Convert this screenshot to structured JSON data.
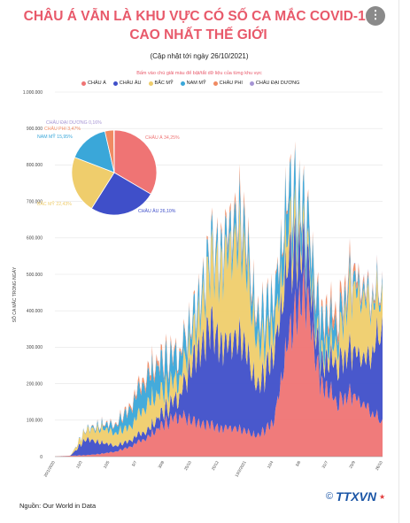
{
  "header": {
    "title_line1": "CHÂU Á VẪN LÀ KHU VỰC CÓ SỐ CA MẮC COVID-19",
    "title_line2": "CAO NHẤT THẾ GIỚI",
    "subtitle": "(Cập nhật tới ngày 26/10/2021)",
    "hint": "Bấm vào chú giải màu để bật/tắt dữ liệu của từng khu vực",
    "more_icon": "more-vertical-icon"
  },
  "legend": [
    {
      "label": "CHÂU Á",
      "color": "#ef7474"
    },
    {
      "label": "CHÂU ÂU",
      "color": "#3f4fc9"
    },
    {
      "label": "BẮC MỸ",
      "color": "#efcd6c"
    },
    {
      "label": "NAM MỸ",
      "color": "#3aa7d9"
    },
    {
      "label": "CHÂU PHI",
      "color": "#f08a62"
    },
    {
      "label": "CHÂU ĐẠI DƯƠNG",
      "color": "#a594d4"
    }
  ],
  "footer": {
    "source": "Nguồn: Our World in Data",
    "logo_copyright": "©",
    "logo_text": "TTXVN"
  },
  "chart_data": [
    {
      "type": "area",
      "stacked": true,
      "ylabel": "SỐ CA MẮC TRONG NGÀY",
      "ylim": [
        0,
        1000000
      ],
      "yticks": [
        0,
        100000,
        200000,
        300000,
        400000,
        500000,
        600000,
        700000,
        800000,
        900000,
        1000000
      ],
      "ytick_labels": [
        "0",
        "100.000",
        "200.000",
        "300.000",
        "400.000",
        "500.000",
        "600.000",
        "700.000",
        "800.000",
        "900.000",
        "1.000.000"
      ],
      "first_x_label": "20/1/2020",
      "last_x_label": "26/10/2021",
      "x_axis_note": "Daily values from 20/1/2020 to 26/10/2021; tick labels are rotated dates",
      "x_tick_labels": [
        "20/1/2020",
        "15/3",
        "10/5",
        "5/7",
        "30/8",
        "25/10",
        "20/12",
        "13/2/2021",
        "10/4",
        "5/6",
        "31/7",
        "25/9",
        "26/10"
      ],
      "x_months": [
        "2020-01",
        "2020-02",
        "2020-03",
        "2020-04",
        "2020-05",
        "2020-06",
        "2020-07",
        "2020-08",
        "2020-09",
        "2020-10",
        "2020-11",
        "2020-12",
        "2021-01",
        "2021-02",
        "2021-03",
        "2021-04",
        "2021-05",
        "2021-06",
        "2021-07",
        "2021-08",
        "2021-09",
        "2021-10"
      ],
      "series": [
        {
          "name": "CHÂU Á",
          "color": "#ef7474",
          "values": [
            500,
            2500,
            4000,
            8000,
            15000,
            30000,
            55000,
            90000,
            115000,
            100000,
            85000,
            80000,
            70000,
            55000,
            95000,
            330000,
            480000,
            210000,
            150000,
            170000,
            135000,
            90000
          ]
        },
        {
          "name": "CHÂU ÂU",
          "color": "#3f4fc9",
          "values": [
            0,
            200,
            45000,
            30000,
            15000,
            18000,
            20000,
            35000,
            55000,
            190000,
            270000,
            230000,
            240000,
            130000,
            190000,
            210000,
            120000,
            60000,
            100000,
            120000,
            130000,
            250000
          ]
        },
        {
          "name": "BẮC MỸ",
          "color": "#efcd6c",
          "values": [
            0,
            50,
            25000,
            40000,
            35000,
            40000,
            75000,
            58000,
            50000,
            80000,
            170000,
            250000,
            260000,
            110000,
            70000,
            90000,
            40000,
            25000,
            50000,
            170000,
            160000,
            80000
          ]
        },
        {
          "name": "NAM MỸ",
          "color": "#3aa7d9",
          "values": [
            0,
            0,
            2000,
            9000,
            25000,
            55000,
            75000,
            78000,
            65000,
            50000,
            40000,
            50000,
            60000,
            65000,
            85000,
            95000,
            80000,
            90000,
            55000,
            30000,
            20000,
            18000
          ]
        },
        {
          "name": "CHÂU PHI",
          "color": "#f08a62",
          "values": [
            0,
            0,
            500,
            2000,
            3500,
            8000,
            15000,
            12000,
            8000,
            7000,
            8000,
            15000,
            20000,
            10000,
            8000,
            9000,
            8000,
            15000,
            30000,
            20000,
            10000,
            5000
          ]
        },
        {
          "name": "CHÂU ĐẠI DƯƠNG",
          "color": "#a594d4",
          "values": [
            0,
            0,
            300,
            400,
            50,
            50,
            400,
            500,
            200,
            50,
            50,
            50,
            50,
            30,
            30,
            50,
            50,
            100,
            400,
            1500,
            2500,
            2500
          ]
        }
      ]
    },
    {
      "type": "pie",
      "slices": [
        {
          "label": "CHÂU Á",
          "value": 34.25,
          "text": "CHÂU Á 34,25%",
          "color": "#ef7474"
        },
        {
          "label": "CHÂU ÂU",
          "value": 26.1,
          "text": "CHÂU ÂU 26,10%",
          "color": "#3f4fc9"
        },
        {
          "label": "BẮC MỸ",
          "value": 22.43,
          "text": "BẮC MỸ 22,43%",
          "color": "#efcd6c"
        },
        {
          "label": "NAM MỸ",
          "value": 15.95,
          "text": "NAM MỸ 15,95%",
          "color": "#3aa7d9"
        },
        {
          "label": "CHÂU PHI",
          "value": 3.47,
          "text": "CHÂU PHI 3,47%",
          "color": "#f08a62"
        },
        {
          "label": "CHÂU ĐẠI DƯƠNG",
          "value": 0.16,
          "text": "CHÂU ĐẠI DƯƠNG 0,16%",
          "color": "#a594d4"
        }
      ]
    }
  ]
}
